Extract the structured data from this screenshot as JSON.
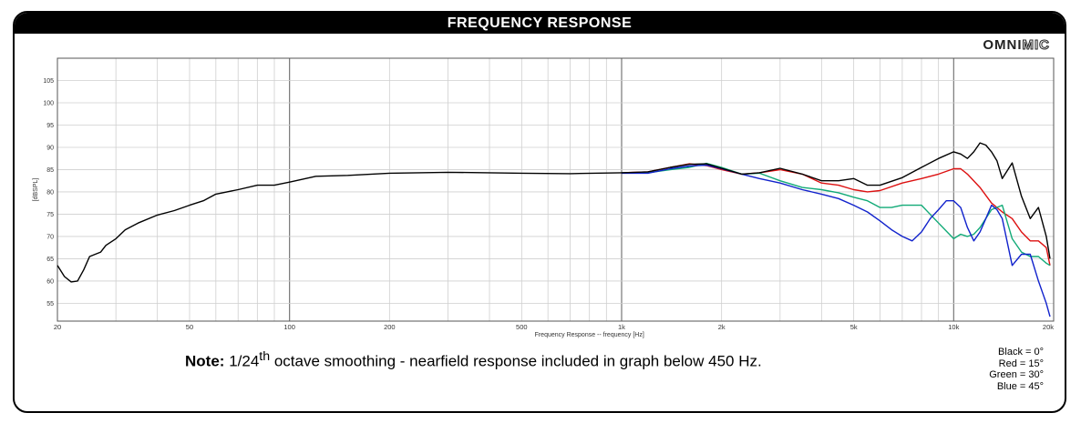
{
  "header": {
    "title": "FREQUENCY RESPONSE",
    "logo_bold": "OMNI",
    "logo_outline": "MIC"
  },
  "note": {
    "label": "Note:",
    "pre": "1/24",
    "sup": "th",
    "post": "octave smoothing - nearfield response included in graph below 450 Hz."
  },
  "legend": [
    "Black = 0°",
    "Red = 15°",
    "Green = 30°",
    "Blue = 45°"
  ],
  "colors": {
    "black": "#000000",
    "red": "#dd1111",
    "green": "#11aa77",
    "blue": "#1122cc"
  },
  "chart_data": {
    "type": "line",
    "title": "",
    "xlabel": "Frequency Response -- frequency [Hz]",
    "ylabel": "[dBSPL]",
    "xscale": "log",
    "xlim": [
      20,
      20000
    ],
    "ylim": [
      51,
      110
    ],
    "grid": true,
    "xticks": [
      {
        "v": 20,
        "l": "20"
      },
      {
        "v": 50,
        "l": "50"
      },
      {
        "v": 100,
        "l": "100"
      },
      {
        "v": 200,
        "l": "200"
      },
      {
        "v": 500,
        "l": "500"
      },
      {
        "v": 1000,
        "l": "1k"
      },
      {
        "v": 2000,
        "l": "2k"
      },
      {
        "v": 5000,
        "l": "5k"
      },
      {
        "v": 10000,
        "l": "10k"
      },
      {
        "v": 20000,
        "l": "20k"
      }
    ],
    "yticks": [
      55,
      60,
      65,
      70,
      75,
      80,
      85,
      90,
      95,
      100,
      105
    ],
    "series": [
      {
        "name": "Black = 0°",
        "color": "#000000",
        "x": [
          20,
          21,
          22,
          23,
          24,
          25,
          26,
          27,
          28,
          30,
          32,
          35,
          40,
          45,
          50,
          55,
          60,
          70,
          80,
          90,
          100,
          120,
          150,
          200,
          300,
          500,
          700,
          1000,
          1200,
          1400,
          1600,
          1800,
          2000,
          2300,
          2600,
          3000,
          3500,
          4000,
          4500,
          5000,
          5500,
          6000,
          7000,
          8000,
          9000,
          10000,
          10500,
          11000,
          11500,
          12000,
          12500,
          13000,
          13500,
          14000,
          15000,
          16000,
          17000,
          18000,
          19000,
          19500
        ],
        "y": [
          63.5,
          61,
          59.8,
          60,
          62.5,
          65.5,
          66,
          66.5,
          68,
          69.5,
          71.5,
          73,
          74.8,
          75.8,
          77,
          78,
          79.5,
          80.5,
          81.5,
          81.5,
          82.2,
          83.5,
          83.7,
          84.2,
          84.4,
          84.2,
          84.1,
          84.3,
          84.5,
          85.5,
          86.2,
          86.3,
          85.3,
          84,
          84.3,
          85.3,
          84,
          82.5,
          82.5,
          83,
          81.5,
          81.5,
          83.2,
          85.5,
          87.5,
          89,
          88.5,
          87.5,
          89,
          91,
          90.5,
          89,
          87,
          83,
          86.5,
          79,
          74,
          76.5,
          70,
          65
        ]
      },
      {
        "name": "Red = 15°",
        "color": "#dd1111",
        "x": [
          1000,
          1200,
          1400,
          1600,
          1800,
          2000,
          2300,
          2600,
          3000,
          3500,
          4000,
          4500,
          5000,
          5500,
          6000,
          7000,
          8000,
          9000,
          10000,
          10500,
          11000,
          12000,
          13000,
          14000,
          15000,
          16000,
          17000,
          18000,
          19000,
          19500
        ],
        "y": [
          84.3,
          84.5,
          85.5,
          86.3,
          85.9,
          85,
          84,
          84.3,
          85,
          84,
          82,
          81.5,
          80.5,
          80,
          80.3,
          82,
          83,
          84,
          85.2,
          85.2,
          84,
          81,
          77.5,
          75.5,
          74,
          71,
          69,
          69,
          67.5,
          63.5
        ]
      },
      {
        "name": "Green = 30°",
        "color": "#11aa77",
        "x": [
          1000,
          1200,
          1400,
          1600,
          1800,
          2000,
          2300,
          2600,
          3000,
          3500,
          4000,
          4500,
          5000,
          5500,
          6000,
          6500,
          7000,
          8000,
          9000,
          10000,
          10500,
          11000,
          11500,
          12000,
          13000,
          14000,
          15000,
          16000,
          17000,
          18000,
          19000,
          19500
        ],
        "y": [
          84.3,
          84.3,
          85,
          85.5,
          86.4,
          85.5,
          84,
          84.2,
          82.5,
          81,
          80.5,
          79.8,
          78.8,
          78,
          76.5,
          76.5,
          77,
          77,
          73,
          69.5,
          70.5,
          70,
          70.5,
          72,
          76,
          77,
          69.5,
          66.5,
          65.5,
          65.5,
          64,
          63.5
        ]
      },
      {
        "name": "Blue = 45°",
        "color": "#1122cc",
        "x": [
          1000,
          1200,
          1400,
          1600,
          1800,
          2000,
          2300,
          2600,
          3000,
          3500,
          4000,
          4500,
          5000,
          5500,
          6000,
          6500,
          7000,
          7500,
          8000,
          8500,
          9000,
          9500,
          10000,
          10500,
          11000,
          11500,
          12000,
          12500,
          13000,
          13500,
          14000,
          15000,
          16000,
          17000,
          18000,
          19000,
          19500
        ],
        "y": [
          84.2,
          84.2,
          85.2,
          85.8,
          86,
          85.2,
          84,
          83,
          82,
          80.5,
          79.5,
          78.5,
          77,
          75.5,
          73.5,
          71.5,
          70,
          69,
          71,
          74,
          76,
          78,
          78,
          76.5,
          72,
          69,
          71,
          74,
          77,
          76,
          74,
          63.5,
          66,
          66,
          60,
          55,
          52
        ]
      }
    ]
  }
}
